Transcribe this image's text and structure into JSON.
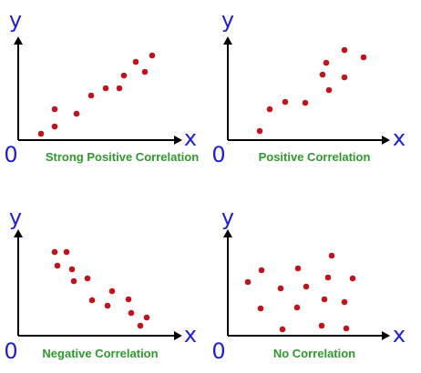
{
  "colors": {
    "axis_letters": "#1f1fd0",
    "captions": "#2e9a2e",
    "points": "#c0141c",
    "axes": "#000000"
  },
  "chart_data": [
    {
      "type": "scatter",
      "title": "Strong Positive Correlation",
      "xlabel": "x",
      "ylabel": "y",
      "origin_label": "0",
      "xlim": [
        0,
        180
      ],
      "ylim": [
        0,
        110
      ],
      "grid": false,
      "points": [
        [
          25,
          7
        ],
        [
          40,
          15
        ],
        [
          40,
          34
        ],
        [
          64,
          29
        ],
        [
          80,
          49
        ],
        [
          96,
          57
        ],
        [
          111,
          57
        ],
        [
          116,
          71
        ],
        [
          129,
          86
        ],
        [
          139,
          75
        ],
        [
          147,
          93
        ]
      ]
    },
    {
      "type": "scatter",
      "title": "Positive Correlation",
      "xlabel": "x",
      "ylabel": "y",
      "origin_label": "0",
      "xlim": [
        0,
        180
      ],
      "ylim": [
        0,
        110
      ],
      "grid": false,
      "points": [
        [
          35,
          10
        ],
        [
          46,
          34
        ],
        [
          63,
          42
        ],
        [
          85,
          41
        ],
        [
          104,
          72
        ],
        [
          108,
          85
        ],
        [
          111,
          55
        ],
        [
          128,
          99
        ],
        [
          128,
          69
        ],
        [
          149,
          91
        ]
      ]
    },
    {
      "type": "scatter",
      "title": "Negative Correlation",
      "xlabel": "x",
      "ylabel": "y",
      "origin_label": "0",
      "xlim": [
        0,
        180
      ],
      "ylim": [
        0,
        110
      ],
      "grid": false,
      "points": [
        [
          40,
          92
        ],
        [
          53,
          92
        ],
        [
          43,
          77
        ],
        [
          59,
          73
        ],
        [
          61,
          60
        ],
        [
          76,
          63
        ],
        [
          81,
          39
        ],
        [
          98,
          33
        ],
        [
          103,
          49
        ],
        [
          121,
          40
        ],
        [
          124,
          25
        ],
        [
          134,
          11
        ],
        [
          141,
          20
        ]
      ]
    },
    {
      "type": "scatter",
      "title": "No Correlation",
      "xlabel": "x",
      "ylabel": "y",
      "origin_label": "0",
      "xlim": [
        0,
        180
      ],
      "ylim": [
        0,
        110
      ],
      "grid": false,
      "points": [
        [
          22,
          59
        ],
        [
          37,
          72
        ],
        [
          36,
          30
        ],
        [
          58,
          52
        ],
        [
          60,
          7
        ],
        [
          77,
          74
        ],
        [
          76,
          31
        ],
        [
          86,
          54
        ],
        [
          103,
          11
        ],
        [
          106,
          40
        ],
        [
          110,
          64
        ],
        [
          114,
          88
        ],
        [
          128,
          37
        ],
        [
          130,
          8
        ],
        [
          137,
          63
        ]
      ]
    }
  ]
}
